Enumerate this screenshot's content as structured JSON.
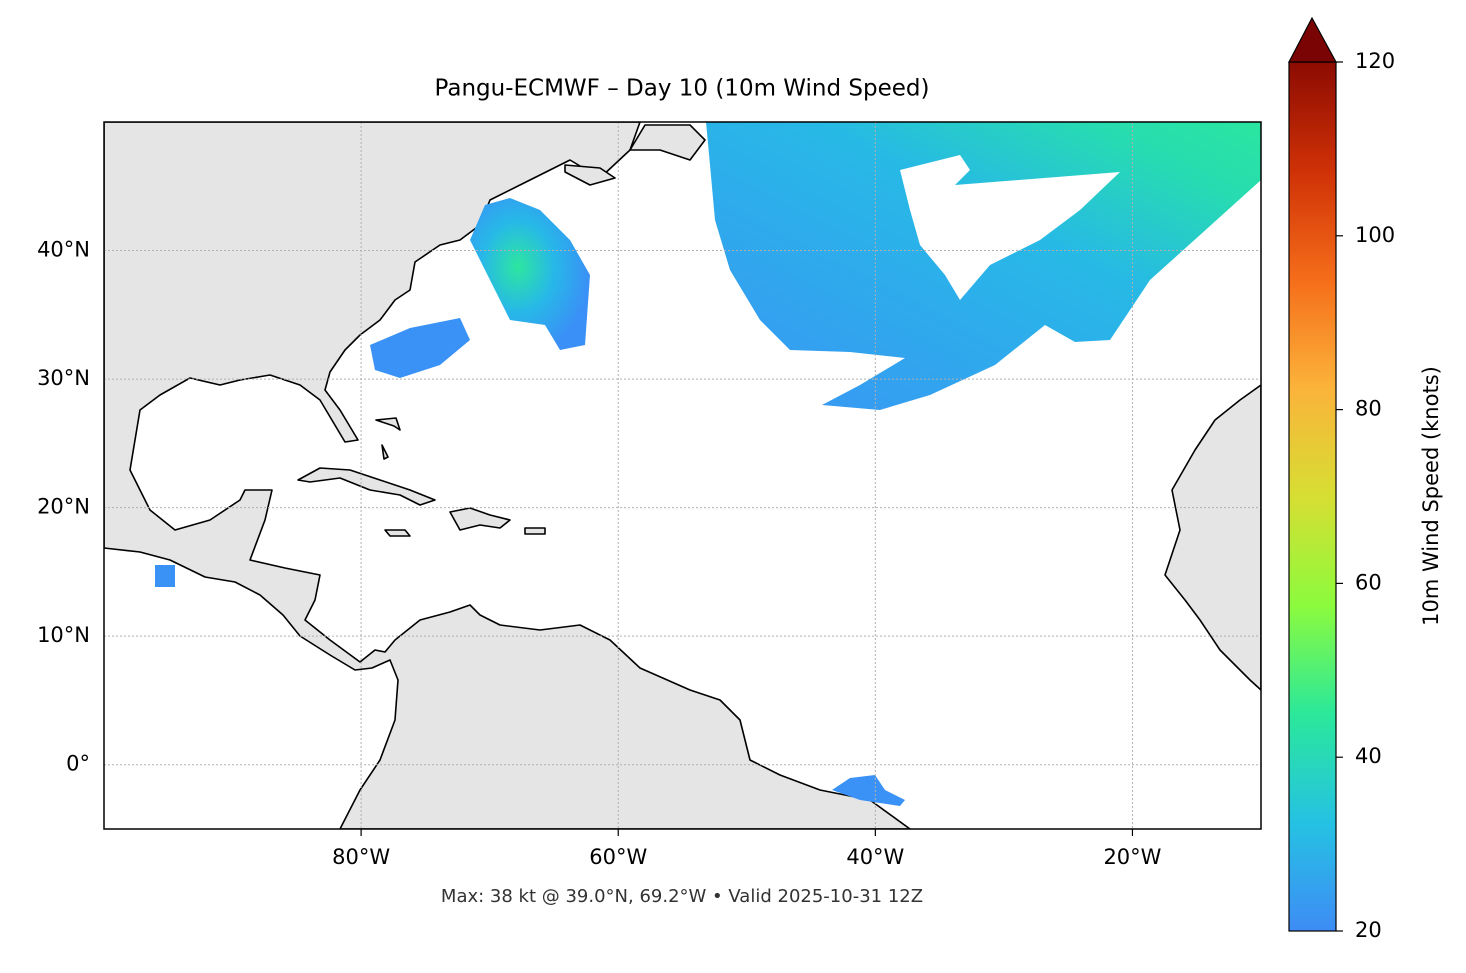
{
  "chart_data": {
    "type": "map",
    "title": "Pangu-ECMWF – Day 10 (10m Wind Speed)",
    "annotation": "Max: 38 kt @ 39.0°N, 69.2°W • Valid 2025-10-31 12Z",
    "xlim": [
      -100,
      -10
    ],
    "ylim": [
      -5,
      50
    ],
    "xticks": [
      {
        "value": -80,
        "label": "80°W"
      },
      {
        "value": -60,
        "label": "60°W"
      },
      {
        "value": -40,
        "label": "40°W"
      },
      {
        "value": -20,
        "label": "20°W"
      }
    ],
    "yticks": [
      {
        "value": 0,
        "label": "0°"
      },
      {
        "value": 10,
        "label": "10°N"
      },
      {
        "value": 20,
        "label": "20°N"
      },
      {
        "value": 30,
        "label": "30°N"
      },
      {
        "value": 40,
        "label": "40°N"
      }
    ],
    "grid": true,
    "colorbar": {
      "label": "10m Wind Speed (knots)",
      "lim": [
        20,
        120
      ],
      "ticks": [
        20,
        40,
        60,
        80,
        100,
        120
      ],
      "colors": [
        "#3e8cf5",
        "#25c2e3",
        "#2be89a",
        "#8cfb3d",
        "#d7de33",
        "#fbb33a",
        "#f56d1a",
        "#cf3106",
        "#8c0b02"
      ],
      "extend_color": "#7a0403"
    }
  }
}
